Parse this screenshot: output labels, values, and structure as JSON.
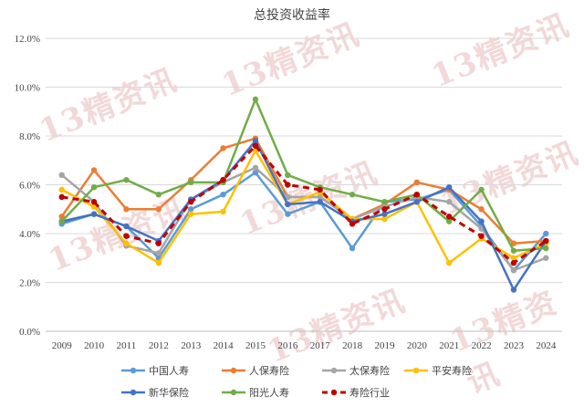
{
  "chart_data": {
    "type": "line",
    "title": "总投资收益率",
    "xlabel": "",
    "ylabel": "",
    "ylim": [
      0,
      12
    ],
    "x": [
      "2009",
      "2010",
      "2011",
      "2012",
      "2013",
      "2014",
      "2015",
      "2016",
      "2017",
      "2018",
      "2019",
      "2020",
      "2021",
      "2022",
      "2023",
      "2024"
    ],
    "y_ticks": [
      "0.0%",
      "2.0%",
      "4.0%",
      "6.0%",
      "8.0%",
      "10.0%",
      "12.0%"
    ],
    "grid": true,
    "legend_position": "bottom",
    "series": [
      {
        "name": "中国人寿",
        "color": "#5b9bd5",
        "dash": false,
        "values": [
          4.4,
          4.8,
          4.3,
          3.0,
          5.0,
          5.6,
          6.5,
          4.8,
          5.3,
          3.4,
          5.3,
          5.4,
          5.8,
          4.3,
          2.5,
          4.0
        ]
      },
      {
        "name": "人保寿险",
        "color": "#ed7d31",
        "dash": false,
        "values": [
          4.7,
          6.6,
          5.0,
          5.0,
          6.2,
          7.5,
          7.9,
          5.5,
          5.5,
          4.6,
          5.2,
          6.1,
          5.8,
          5.0,
          3.6,
          3.7
        ]
      },
      {
        "name": "太保寿险",
        "color": "#a5a5a5",
        "dash": false,
        "values": [
          6.4,
          5.3,
          3.5,
          3.2,
          5.4,
          6.1,
          6.7,
          5.5,
          5.5,
          4.6,
          5.1,
          5.5,
          5.3,
          4.2,
          2.5,
          3.0
        ]
      },
      {
        "name": "平安寿险",
        "color": "#ffc000",
        "dash": false,
        "values": [
          5.8,
          5.1,
          3.6,
          2.8,
          4.8,
          4.9,
          7.4,
          5.2,
          5.7,
          4.6,
          4.6,
          5.3,
          2.8,
          3.8,
          3.0,
          3.6
        ]
      },
      {
        "name": "新华保险",
        "color": "#4472c4",
        "dash": false,
        "values": [
          4.5,
          4.8,
          4.3,
          3.7,
          5.4,
          6.2,
          7.8,
          5.2,
          5.3,
          4.5,
          4.8,
          5.3,
          5.9,
          4.5,
          1.7,
          3.7
        ]
      },
      {
        "name": "阳光人寿",
        "color": "#70ad47",
        "dash": false,
        "values": [
          4.5,
          5.9,
          6.2,
          5.6,
          6.1,
          6.1,
          9.5,
          6.4,
          5.9,
          5.6,
          5.3,
          5.6,
          4.5,
          5.8,
          3.3,
          3.4
        ]
      },
      {
        "name": "寿险行业",
        "color": "#c00000",
        "dash": true,
        "values": [
          5.5,
          5.3,
          3.9,
          3.6,
          5.3,
          6.2,
          7.6,
          6.0,
          5.8,
          4.4,
          5.0,
          5.6,
          4.7,
          3.9,
          2.8,
          3.7
        ]
      }
    ]
  },
  "watermark": {
    "label": "13精资讯"
  }
}
